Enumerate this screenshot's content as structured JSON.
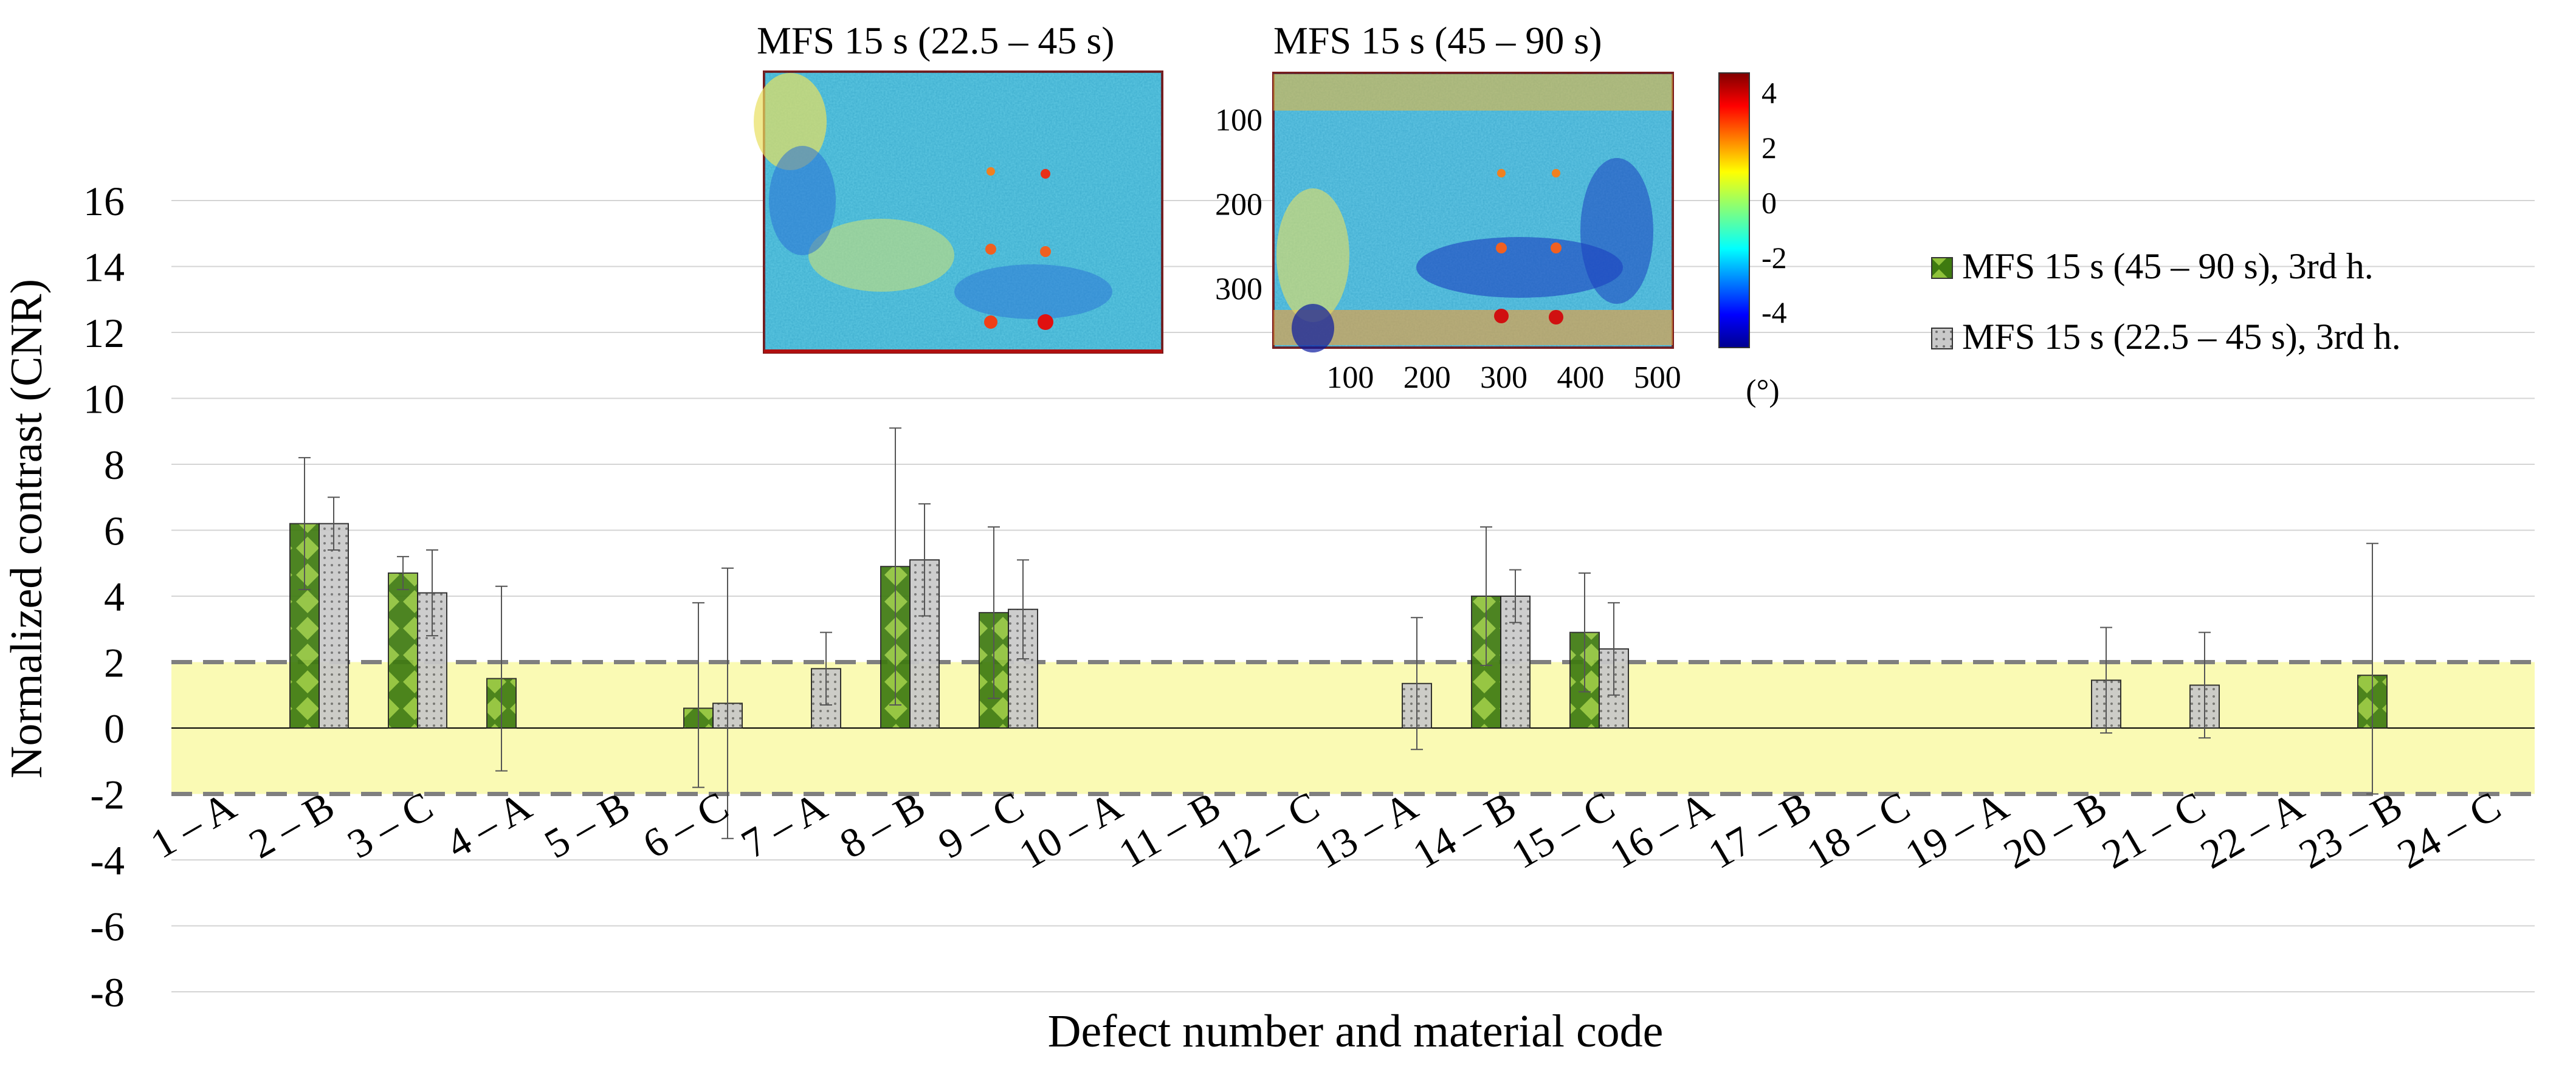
{
  "chart_data": {
    "type": "bar",
    "title": "",
    "xlabel": "Defect number and material code",
    "ylabel": "Normalized contrast (CNR)",
    "ylim": [
      -8,
      16
    ],
    "yticks": [
      -8,
      -6,
      -4,
      -2,
      0,
      2,
      4,
      6,
      8,
      10,
      12,
      14,
      16
    ],
    "grid": true,
    "legend_position": "right",
    "categories": [
      "1 – A",
      "2 – B",
      "3 – C",
      "4 – A",
      "5 – B",
      "6 – C",
      "7 – A",
      "8 – B",
      "9 – C",
      "10 – A",
      "11 – B",
      "12 – C",
      "13 – A",
      "14 – B",
      "15 – C",
      "16 – A",
      "17 – B",
      "18 – C",
      "19 – A",
      "20 – B",
      "21 – C",
      "22 – A",
      "23 – B",
      "24 – C"
    ],
    "series": [
      {
        "name": "MFS 15 s (45 – 90 s), 3rd h.",
        "color": "#3e7a10",
        "pattern": "diamond-checker",
        "values": [
          null,
          6.2,
          4.7,
          1.5,
          null,
          0.6,
          null,
          4.9,
          3.5,
          null,
          null,
          null,
          null,
          4.0,
          2.9,
          null,
          null,
          null,
          null,
          null,
          null,
          null,
          1.6,
          null
        ],
        "err_low": [
          null,
          2.0,
          0.5,
          2.8,
          null,
          2.4,
          null,
          4.2,
          2.6,
          null,
          null,
          null,
          null,
          2.1,
          1.8,
          null,
          null,
          null,
          null,
          null,
          null,
          null,
          3.6,
          null
        ],
        "err_high": [
          null,
          2.0,
          0.5,
          2.8,
          null,
          3.2,
          null,
          4.2,
          2.6,
          null,
          null,
          null,
          null,
          2.1,
          1.8,
          null,
          null,
          null,
          null,
          null,
          null,
          null,
          4.0,
          null
        ]
      },
      {
        "name": "MFS 15 s (22.5 – 45 s), 3rd h.",
        "color": "#c8c8c8",
        "pattern": "dotted-grid",
        "values": [
          null,
          6.2,
          4.1,
          null,
          null,
          0.75,
          1.8,
          5.1,
          3.6,
          null,
          null,
          null,
          1.35,
          4.0,
          2.4,
          null,
          null,
          null,
          null,
          1.45,
          1.3,
          null,
          null,
          null
        ],
        "err_low": [
          null,
          0.8,
          1.3,
          null,
          null,
          4.1,
          1.1,
          1.7,
          1.5,
          null,
          null,
          null,
          2.0,
          0.8,
          1.4,
          null,
          null,
          null,
          null,
          1.6,
          1.6,
          null,
          null,
          null
        ],
        "err_high": [
          null,
          0.8,
          1.3,
          null,
          null,
          4.1,
          1.1,
          1.7,
          1.5,
          null,
          null,
          null,
          2.0,
          0.8,
          1.4,
          null,
          null,
          null,
          null,
          1.6,
          1.6,
          null,
          null,
          null
        ]
      }
    ],
    "threshold_band": {
      "low": -2,
      "high": 2,
      "color": "#fafab4"
    },
    "insets": [
      {
        "title": "MFS 15 s (22.5 – 45 s)"
      },
      {
        "title": "MFS 15 s (45 – 90 s)",
        "y_ticks": [
          "100",
          "200",
          "300"
        ],
        "x_ticks": [
          "100",
          "200",
          "300",
          "400",
          "500"
        ],
        "colorbar_ticks": [
          "4",
          "2",
          "0",
          "-2",
          "-4"
        ],
        "colorbar_unit": "(°)"
      }
    ]
  }
}
